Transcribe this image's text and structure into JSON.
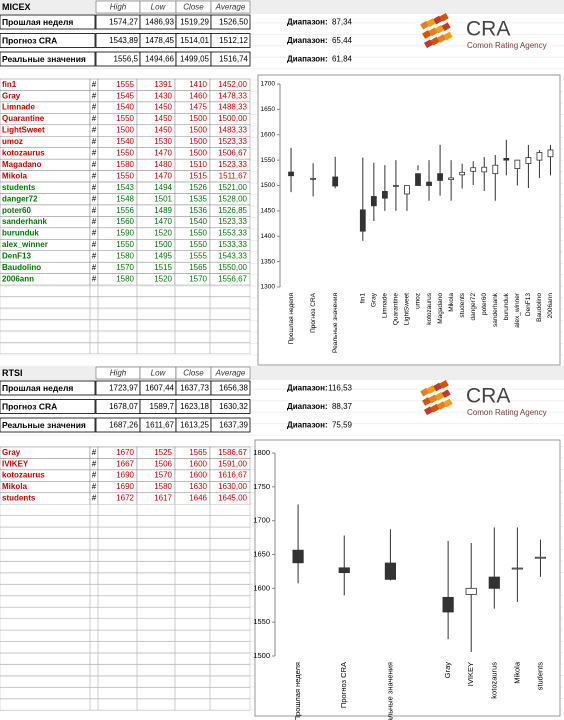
{
  "logo": {
    "name": "CRA",
    "tagline": "Comon Rating Agency"
  },
  "range_label": "Диапазон:",
  "row_marker": "#",
  "sheets": [
    {
      "title": "MICEX",
      "ranges": [
        "87,34",
        "65,44",
        "61,84"
      ],
      "row_colors": [
        "#cc0000",
        "#cc0000",
        "#cc0000",
        "#cc0000",
        "#cc0000",
        "#cc0000",
        "#cc0000",
        "#cc0000",
        "#cc0000",
        "#007a00",
        "#007a00",
        "#007a00",
        "#007a00",
        "#007a00",
        "#007a00",
        "#007a00",
        "#007a00",
        "#007a00"
      ]
    },
    {
      "title": "RTSI",
      "ranges": [
        "116,53",
        "88,37",
        "75,59"
      ],
      "row_colors": [
        "#cc0000",
        "#cc0000",
        "#cc0000",
        "#cc0000",
        "#cc0000"
      ]
    }
  ],
  "chart_data": [
    {
      "type": "candlestick",
      "categories": [
        "Прошлая неделя",
        "Прогноз CRA",
        "Реальные значения",
        "fin1",
        "Gray",
        "Limnade",
        "Quarantine",
        "LightSweet",
        "umoz",
        "kotozaurus",
        "Magadano",
        "Mikola",
        "students",
        "danger72",
        "poter60",
        "sanderhank",
        "burunduk",
        "alex_winner",
        "DenF13",
        "Baudolino",
        "2006ann"
      ],
      "series": [
        {
          "name": "High",
          "values": [
            1574.27,
            1543.89,
            1556.5,
            1555,
            1545,
            1540,
            1550,
            1500,
            1540,
            1550,
            1580,
            1550,
            1543,
            1548,
            1556,
            1560,
            1590,
            1550,
            1580,
            1570,
            1580
          ],
          "value_labels": [
            "1574,27",
            "1543,89",
            "1556,5",
            "1555",
            "1545",
            "1540",
            "1550",
            "1500",
            "1540",
            "1550",
            "1580",
            "1550",
            "1543",
            "1548",
            "1556",
            "1560",
            "1590",
            "1550",
            "1580",
            "1570",
            "1580"
          ]
        },
        {
          "name": "Low",
          "values": [
            1486.93,
            1478.45,
            1494.66,
            1391,
            1430,
            1450,
            1450,
            1450,
            1530,
            1470,
            1480,
            1470,
            1494,
            1501,
            1489,
            1470,
            1520,
            1500,
            1495,
            1515,
            1520
          ],
          "value_labels": [
            "1486,93",
            "1478,45",
            "1494,66",
            "1391",
            "1430",
            "1450",
            "1450",
            "1450",
            "1530",
            "1470",
            "1480",
            "1470",
            "1494",
            "1501",
            "1489",
            "1470",
            "1520",
            "1500",
            "1495",
            "1515",
            "1520"
          ]
        },
        {
          "name": "Close",
          "values": [
            1519.29,
            1514.01,
            1499.05,
            1410,
            1460,
            1475,
            1500,
            1500,
            1500,
            1500,
            1510,
            1515,
            1526,
            1535,
            1536,
            1540,
            1550,
            1550,
            1555,
            1565,
            1570
          ],
          "value_labels": [
            "1519,29",
            "1514,01",
            "1499,05",
            "1410",
            "1460",
            "1475",
            "1500",
            "1500",
            "1500",
            "1500",
            "1510",
            "1515",
            "1526",
            "1535",
            "1536",
            "1540",
            "1550",
            "1550",
            "1555",
            "1565",
            "1570"
          ]
        },
        {
          "name": "Average",
          "values": [
            1526.5,
            1512.12,
            1516.74,
            1452,
            1478.33,
            1488.33,
            1500,
            1483.33,
            1523.33,
            1506.67,
            1523.33,
            1511.67,
            1521,
            1528,
            1526.85,
            1523.33,
            1553.33,
            1533.33,
            1543.33,
            1550,
            1556.67
          ],
          "value_labels": [
            "1526,50",
            "1512,12",
            "1516,74",
            "1452,00",
            "1478,33",
            "1488,33",
            "1500,00",
            "1483,33",
            "1523,33",
            "1506,67",
            "1523,33",
            "1511,67",
            "1521,00",
            "1528,00",
            "1526,85",
            "1523,33",
            "1553,33",
            "1533,33",
            "1543,33",
            "1550,00",
            "1556,67"
          ]
        }
      ],
      "ylim": [
        1300,
        1700
      ],
      "yticks": [
        1300,
        1350,
        1400,
        1450,
        1500,
        1550,
        1600,
        1650,
        1700
      ],
      "grid": false,
      "color": "#333333",
      "up_color": "#ffffff",
      "down_color": "#333333"
    },
    {
      "type": "candlestick",
      "categories": [
        "Прошлая неделя",
        "Прогноз CRA",
        "Реальные значения",
        "Gray",
        "IVIKEY",
        "kotozaurus",
        "Mikola",
        "students"
      ],
      "series": [
        {
          "name": "High",
          "values": [
            1723.97,
            1678.07,
            1687.26,
            1670,
            1667,
            1690,
            1690,
            1672
          ],
          "value_labels": [
            "1723,97",
            "1678,07",
            "1687,26",
            "1670",
            "1667",
            "1690",
            "1690",
            "1672"
          ]
        },
        {
          "name": "Low",
          "values": [
            1607.44,
            1589.7,
            1611.67,
            1525,
            1506,
            1570,
            1580,
            1617
          ],
          "value_labels": [
            "1607,44",
            "1589,7",
            "1611,67",
            "1525",
            "1506",
            "1570",
            "1580",
            "1617"
          ]
        },
        {
          "name": "Close",
          "values": [
            1637.73,
            1623.18,
            1613.25,
            1565,
            1600,
            1600,
            1630,
            1646
          ],
          "value_labels": [
            "1637,73",
            "1623,18",
            "1613,25",
            "1565",
            "1600",
            "1600",
            "1630",
            "1646"
          ]
        },
        {
          "name": "Average",
          "values": [
            1656.38,
            1630.32,
            1637.39,
            1586.67,
            1591,
            1616.67,
            1630,
            1645
          ],
          "value_labels": [
            "1656,38",
            "1630,32",
            "1637,39",
            "1586,67",
            "1591,00",
            "1616,67",
            "1630,00",
            "1645,00"
          ]
        }
      ],
      "ylim": [
        1500,
        1800
      ],
      "yticks": [
        1500,
        1550,
        1600,
        1650,
        1700,
        1750,
        1800
      ],
      "grid": false,
      "color": "#333333",
      "up_color": "#ffffff",
      "down_color": "#333333"
    }
  ]
}
